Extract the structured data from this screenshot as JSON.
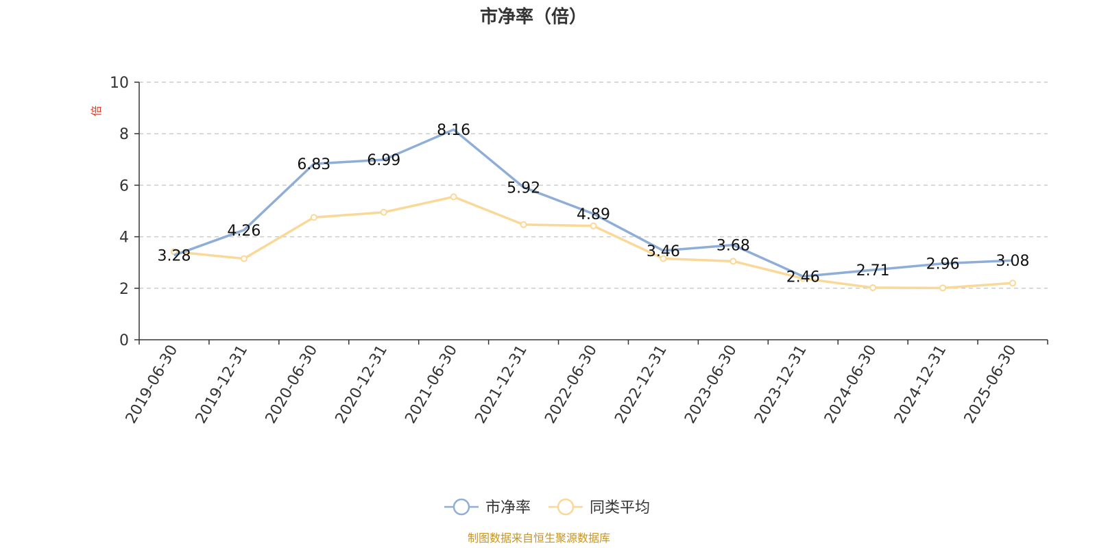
{
  "chart_data": {
    "type": "line",
    "title": "市净率（倍）",
    "ylabel": "倍",
    "ylim": [
      0,
      10
    ],
    "yticks": [
      0,
      2,
      4,
      6,
      8,
      10
    ],
    "grid": true,
    "legend_position": "bottom",
    "categories": [
      "2019-06-30",
      "2019-12-31",
      "2020-06-30",
      "2020-12-31",
      "2021-06-30",
      "2021-12-31",
      "2022-06-30",
      "2022-12-31",
      "2023-06-30",
      "2023-12-31",
      "2024-06-30",
      "2024-12-31",
      "2025-06-30"
    ],
    "series": [
      {
        "name": "市净率",
        "color": "#8eaed8",
        "values": [
          3.28,
          4.26,
          6.83,
          6.99,
          8.16,
          5.92,
          4.89,
          3.46,
          3.68,
          2.46,
          2.71,
          2.96,
          3.08
        ],
        "labels": [
          "3.28",
          "4.26",
          "6.83",
          "6.99",
          "8.16",
          "5.92",
          "4.89",
          "3.46",
          "3.68",
          "2.46",
          "2.71",
          "2.96",
          "3.08"
        ],
        "show_points": false
      },
      {
        "name": "同类平均",
        "color": "#fad897",
        "values": [
          3.42,
          3.15,
          4.75,
          4.95,
          5.55,
          4.47,
          4.42,
          3.15,
          3.05,
          2.38,
          2.02,
          2.01,
          2.2
        ],
        "show_points": true
      }
    ]
  },
  "source": "制图数据来自恒生聚源数据库"
}
